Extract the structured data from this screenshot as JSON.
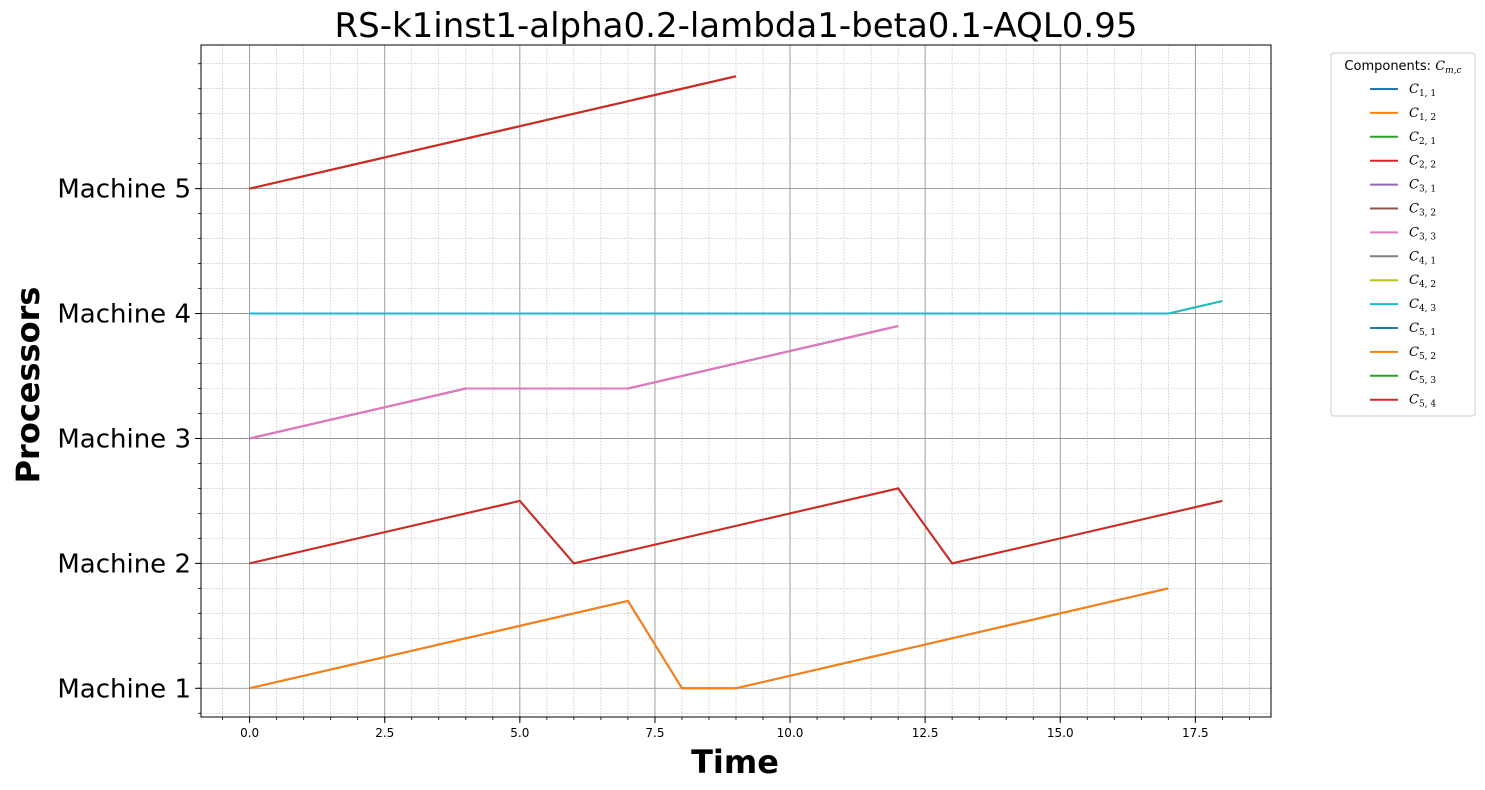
{
  "chart_data": {
    "type": "line",
    "title": "RS-k1inst1-alpha0.2-lambda1-beta0.1-AQL0.95",
    "xlabel": "Time",
    "ylabel": "Processors",
    "xlim": [
      -0.9,
      18.9
    ],
    "ylim": [
      0.77,
      6.15
    ],
    "x_ticks": [
      0.0,
      2.5,
      5.0,
      7.5,
      10.0,
      12.5,
      15.0,
      17.5
    ],
    "x_tick_labels": [
      "0.0",
      "2.5",
      "5.0",
      "7.5",
      "10.0",
      "12.5",
      "15.0",
      "17.5"
    ],
    "y_ticks": [
      1,
      2,
      3,
      4,
      5
    ],
    "y_tick_labels": [
      "Machine 1",
      "Machine 2",
      "Machine 3",
      "Machine 4",
      "Machine 5"
    ],
    "grid": true,
    "legend": {
      "title": "Components: C_{m,c}",
      "placement": "outside-top-right"
    },
    "series": [
      {
        "name": "C",
        "sub": "1, 1",
        "color": "#1f77b4",
        "x": [
          0,
          7,
          8,
          9,
          17
        ],
        "y": [
          1.0,
          1.7,
          1.0,
          1.0,
          1.8
        ]
      },
      {
        "name": "C",
        "sub": "1, 2",
        "color": "#ff7f0e",
        "x": [
          0,
          7,
          8,
          9,
          17
        ],
        "y": [
          1.0,
          1.7,
          1.0,
          1.0,
          1.8
        ]
      },
      {
        "name": "C",
        "sub": "2, 1",
        "color": "#2ca02c",
        "x": [
          0,
          5,
          6,
          12,
          13,
          18
        ],
        "y": [
          2.0,
          2.5,
          2.0,
          2.6,
          2.0,
          2.5
        ]
      },
      {
        "name": "C",
        "sub": "2, 2",
        "color": "#d62728",
        "x": [
          0,
          5,
          6,
          12,
          13,
          18
        ],
        "y": [
          2.0,
          2.5,
          2.0,
          2.6,
          2.0,
          2.5
        ]
      },
      {
        "name": "C",
        "sub": "3, 1",
        "color": "#9467bd",
        "x": [
          0,
          4,
          7,
          12
        ],
        "y": [
          3.0,
          3.4,
          3.4,
          3.9
        ]
      },
      {
        "name": "C",
        "sub": "3, 2",
        "color": "#8c564b",
        "x": [
          0,
          4,
          7,
          12
        ],
        "y": [
          3.0,
          3.4,
          3.4,
          3.9
        ]
      },
      {
        "name": "C",
        "sub": "3, 3",
        "color": "#e377c2",
        "x": [
          0,
          4,
          7,
          12
        ],
        "y": [
          3.0,
          3.4,
          3.4,
          3.9
        ]
      },
      {
        "name": "C",
        "sub": "4, 1",
        "color": "#7f7f7f",
        "x": [
          0,
          17,
          18
        ],
        "y": [
          4.0,
          4.0,
          4.1
        ]
      },
      {
        "name": "C",
        "sub": "4, 2",
        "color": "#bcbd22",
        "x": [
          0,
          17,
          18
        ],
        "y": [
          4.0,
          4.0,
          4.1
        ]
      },
      {
        "name": "C",
        "sub": "4, 3",
        "color": "#17becf",
        "x": [
          0,
          17,
          18
        ],
        "y": [
          4.0,
          4.0,
          4.1
        ]
      },
      {
        "name": "C",
        "sub": "5, 1",
        "color": "#1f77b4",
        "x": [
          0,
          9
        ],
        "y": [
          5.0,
          5.9
        ]
      },
      {
        "name": "C",
        "sub": "5, 2",
        "color": "#ff7f0e",
        "x": [
          0,
          9
        ],
        "y": [
          5.0,
          5.9
        ]
      },
      {
        "name": "C",
        "sub": "5, 3",
        "color": "#2ca02c",
        "x": [
          0,
          9
        ],
        "y": [
          5.0,
          5.9
        ]
      },
      {
        "name": "C",
        "sub": "5, 4",
        "color": "#d62728",
        "x": [
          0,
          9
        ],
        "y": [
          5.0,
          5.9
        ]
      }
    ]
  }
}
